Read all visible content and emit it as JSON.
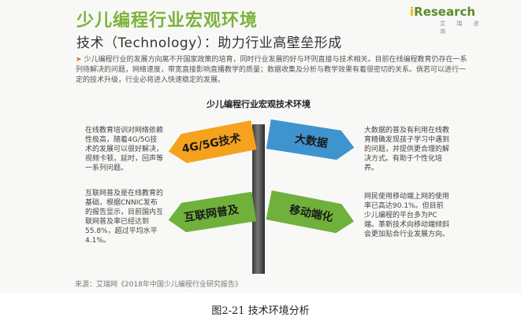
{
  "header": {
    "title": "少儿编程行业宏观环境",
    "subtitle": "技术（Technology）：助力行业高壁垒形成"
  },
  "logo": {
    "brand": "Research",
    "brand_prefix": "i",
    "tagline": "艾 瑞 咨 询",
    "colors": {
      "green": "#5a8a2a",
      "yellow": "#e8b800"
    }
  },
  "intro": {
    "text": "少儿编程行业的发展方向离不开国家政策的培育，同时行业发展的好与坏则直接与技术相关。目前在线编程教育仍存在一系列待解决的问题，网络速度，带宽直接影响直播教学的质量；数据收集及分析与教学效果有着很密切的关系。倘若可以进行一定的技术升级，行业必将进入快速稳定的发展。"
  },
  "diagram": {
    "title": "少儿编程行业宏观技术环境",
    "signs": {
      "top_left": {
        "label": "4G/5G技术",
        "color": "#f5a21e"
      },
      "top_right": {
        "label": "大数据",
        "color": "#3f93cf"
      },
      "bottom_left": {
        "label": "互联网普及",
        "color": "#6fb13b"
      },
      "bottom_right": {
        "label": "移动端化",
        "color": "#6fb13b"
      }
    },
    "descriptions": {
      "top_left": "在线教育培训对网络依赖性极高，随着4G/5G技术的发展可以很好解决，视频卡顿，延时，回声等一系列问题。",
      "top_right": "大数据的普及有利用在线教育精确发现孩子学习中遇到的问题，并提供更合理的解决方式。有助于个性化培养。",
      "bottom_left": "互联网普及是在线教育的基础，根据CNNIC发布的报告显示，目前国内互联网普及率已经达到55.8%，超过平均水平4.1%。",
      "bottom_right": "网民使用移动端上网的使用率已高达90.1%。但目前少儿编程的平台多为PC端。革新技术向移动端倾斜会更加贴合行业发展方向。"
    }
  },
  "source": "来源：艾瑞网《2018年中国少儿编程行业研究报告》",
  "caption": "图2-21    技术环境分析"
}
